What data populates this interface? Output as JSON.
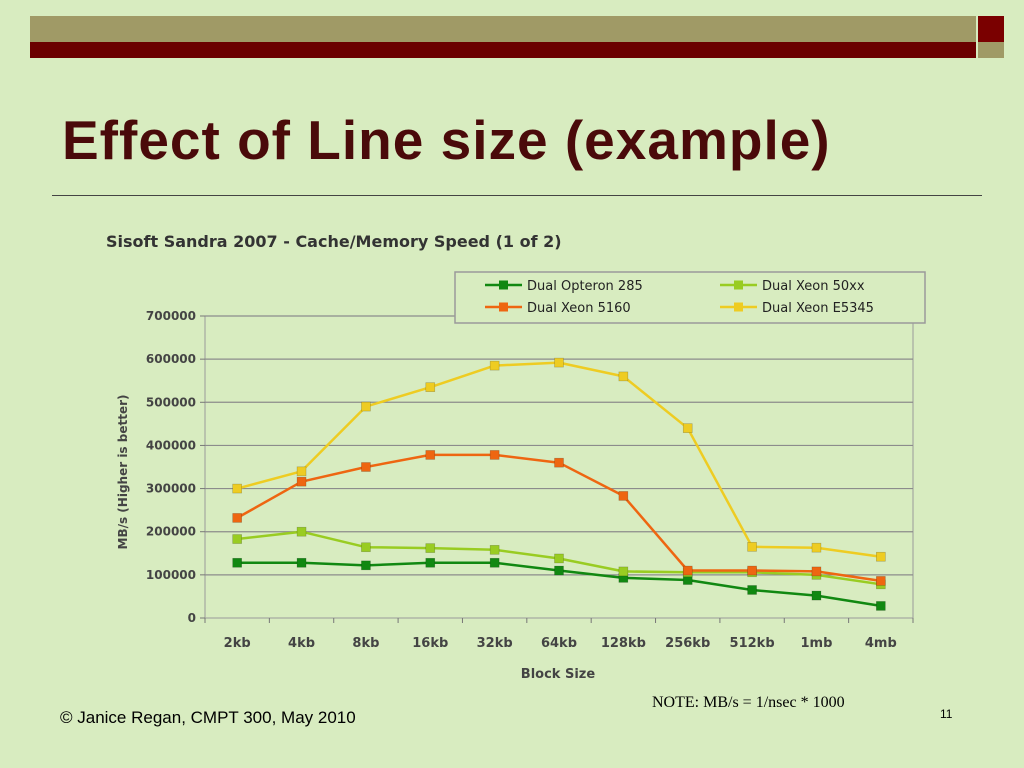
{
  "slide": {
    "title": "Effect of Line size (example)",
    "note": "NOTE: MB/s = 1/nsec  * 1000",
    "footer": "© Janice Regan, CMPT 300, May 2010",
    "page_number": "11",
    "colors": {
      "background": "#d8ecc0",
      "title": "#4a0a0a",
      "bar_olive": "#a09a66",
      "bar_maroon": "#6b0000"
    }
  },
  "chart_data": {
    "type": "line",
    "title": "Sisoft Sandra 2007 - Cache/Memory Speed (1 of 2)",
    "xlabel": "Block Size",
    "ylabel": "MB/s  (Higher is better)",
    "categories": [
      "2kb",
      "4kb",
      "8kb",
      "16kb",
      "32kb",
      "64kb",
      "128kb",
      "256kb",
      "512kb",
      "1mb",
      "4mb"
    ],
    "yticks": [
      0,
      100000,
      200000,
      300000,
      400000,
      500000,
      600000,
      700000
    ],
    "ytick_labels": [
      "0",
      "100000",
      "200000",
      "300000",
      "400000",
      "500000",
      "600000",
      "700000"
    ],
    "ylim": [
      0,
      700000
    ],
    "grid": true,
    "legend_position": "top-right",
    "series": [
      {
        "name": "Dual Opteron 285",
        "color": "#118811",
        "values": [
          128000,
          128000,
          122000,
          128000,
          128000,
          110000,
          93000,
          88000,
          65000,
          52000,
          28000
        ]
      },
      {
        "name": "Dual Xeon 50xx",
        "color": "#99cc22",
        "values": [
          183000,
          200000,
          164000,
          162000,
          158000,
          138000,
          108000,
          106000,
          106000,
          100000,
          78000
        ]
      },
      {
        "name": "Dual Xeon 5160",
        "color": "#ee6611",
        "values": [
          232000,
          316000,
          350000,
          378000,
          378000,
          360000,
          283000,
          110000,
          110000,
          108000,
          86000
        ]
      },
      {
        "name": "Dual Xeon E5345",
        "color": "#eecc22",
        "values": [
          300000,
          340000,
          490000,
          535000,
          585000,
          592000,
          560000,
          440000,
          165000,
          163000,
          142000
        ]
      }
    ]
  }
}
